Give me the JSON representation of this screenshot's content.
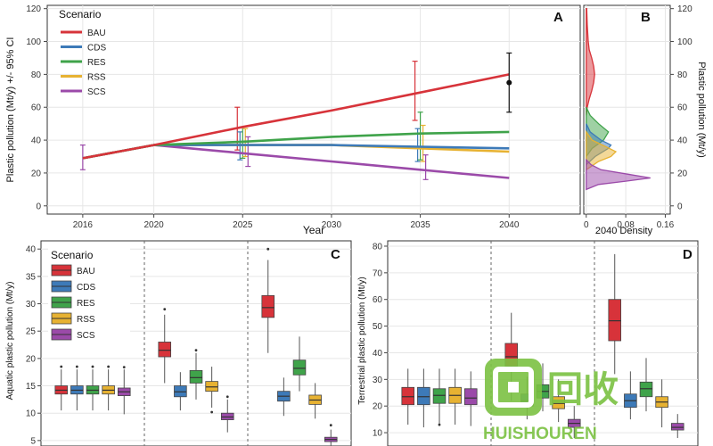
{
  "colors": {
    "BAU": "#d7333a",
    "CDS": "#3d7ab8",
    "RES": "#3fa34a",
    "RSS": "#e7b232",
    "SCS": "#9b4aa9",
    "watermark": "#7bc142"
  },
  "chart_data": [
    {
      "panel": "A",
      "type": "line",
      "xlabel": "Year",
      "ylabel": "Plastic pollution (Mt/y) +/- 95% CI",
      "xlim": [
        2014,
        2044
      ],
      "ylim": [
        -5,
        122
      ],
      "xticks": [
        2016,
        2020,
        2025,
        2030,
        2035,
        2040
      ],
      "yticks": [
        0,
        20,
        40,
        60,
        80,
        100,
        120
      ],
      "legend": {
        "title": "Scenario",
        "placement": "top-left"
      },
      "series": [
        {
          "name": "BAU",
          "x": [
            2016,
            2020,
            2025,
            2030,
            2035,
            2040
          ],
          "y": [
            29,
            37,
            48,
            58,
            69,
            80
          ]
        },
        {
          "name": "CDS",
          "x": [
            2016,
            2020,
            2025,
            2030,
            2035,
            2040
          ],
          "y": [
            29,
            37,
            37,
            37,
            36,
            35
          ]
        },
        {
          "name": "RES",
          "x": [
            2016,
            2020,
            2025,
            2030,
            2035,
            2040
          ],
          "y": [
            29,
            37,
            39,
            42,
            44,
            45
          ]
        },
        {
          "name": "RSS",
          "x": [
            2016,
            2020,
            2025,
            2030,
            2035,
            2040
          ],
          "y": [
            29,
            37,
            37,
            37,
            35,
            33
          ]
        },
        {
          "name": "SCS",
          "x": [
            2016,
            2020,
            2025,
            2030,
            2035,
            2040
          ],
          "y": [
            29,
            37,
            32,
            27,
            22,
            17
          ]
        }
      ],
      "error_bars": [
        {
          "series": "BAU",
          "x": 2025,
          "low": 34,
          "high": 60
        },
        {
          "series": "CDS",
          "x": 2025,
          "low": 28,
          "high": 45
        },
        {
          "series": "RES",
          "x": 2025,
          "low": 29,
          "high": 48
        },
        {
          "series": "RSS",
          "x": 2025,
          "low": 30,
          "high": 47
        },
        {
          "series": "SCS",
          "x": 2025,
          "low": 24,
          "high": 42
        },
        {
          "series": "BAU",
          "x": 2035,
          "low": 52,
          "high": 88
        },
        {
          "series": "CDS",
          "x": 2035,
          "low": 27,
          "high": 47
        },
        {
          "series": "RES",
          "x": 2035,
          "low": 28,
          "high": 57
        },
        {
          "series": "RSS",
          "x": 2035,
          "low": 27,
          "high": 49
        },
        {
          "series": "SCS",
          "x": 2035,
          "low": 16,
          "high": 31
        },
        {
          "series": "SCS",
          "x": 2016,
          "low": 22,
          "high": 37
        }
      ],
      "observed": {
        "x": 2040,
        "y": 75,
        "low": 57,
        "high": 93
      }
    },
    {
      "panel": "B",
      "type": "area",
      "xlabel": "2040 Density",
      "ylabel": "Plastic pollution (Mt/y)",
      "xlim": [
        -0.005,
        0.17
      ],
      "ylim": [
        -5,
        122
      ],
      "xticks": [
        0,
        0.08,
        0.16
      ],
      "xticklabels": [
        "0",
        "0.08",
        "0.16"
      ],
      "yticks": [
        0,
        20,
        40,
        60,
        80,
        100,
        120
      ],
      "series": [
        {
          "name": "BAU",
          "y": [
            55,
            60,
            65,
            70,
            75,
            80,
            85,
            90,
            95,
            100,
            110,
            120
          ],
          "d": [
            0,
            0.002,
            0.006,
            0.011,
            0.015,
            0.017,
            0.015,
            0.011,
            0.006,
            0.004,
            0.002,
            0.001
          ]
        },
        {
          "name": "RES",
          "y": [
            30,
            35,
            40,
            45,
            50,
            55,
            60
          ],
          "d": [
            0,
            0.012,
            0.035,
            0.045,
            0.025,
            0.008,
            0
          ]
        },
        {
          "name": "CDS",
          "y": [
            25,
            30,
            35,
            37,
            40,
            45,
            50
          ],
          "d": [
            0,
            0.018,
            0.045,
            0.05,
            0.03,
            0.008,
            0
          ]
        },
        {
          "name": "RSS",
          "y": [
            22,
            27,
            30,
            33,
            36,
            40,
            45
          ],
          "d": [
            0,
            0.025,
            0.05,
            0.06,
            0.04,
            0.012,
            0
          ]
        },
        {
          "name": "SCS",
          "y": [
            10,
            13,
            15,
            17,
            19,
            22,
            25,
            28
          ],
          "d": [
            0,
            0.025,
            0.08,
            0.13,
            0.09,
            0.03,
            0.01,
            0
          ]
        }
      ]
    },
    {
      "panel": "C",
      "type": "box",
      "ylabel": "Aquatic plastic pollution (Mt/y)",
      "ylim": [
        4,
        41.5
      ],
      "yticks": [
        5,
        10,
        15,
        20,
        25,
        30,
        35,
        40
      ],
      "legend": {
        "title": "Scenario",
        "placement": "top-left"
      },
      "groups": [
        {
          "boxes": [
            {
              "name": "BAU",
              "min": 10.5,
              "q1": 13.5,
              "median": 14.2,
              "q3": 15,
              "max": 18,
              "outliers": [
                18.5
              ]
            },
            {
              "name": "CDS",
              "min": 10.5,
              "q1": 13.5,
              "median": 14.2,
              "q3": 15,
              "max": 18,
              "outliers": [
                18.5
              ]
            },
            {
              "name": "RES",
              "min": 10.5,
              "q1": 13.5,
              "median": 14.2,
              "q3": 15,
              "max": 18,
              "outliers": [
                18.5
              ]
            },
            {
              "name": "RSS",
              "min": 10.5,
              "q1": 13.5,
              "median": 14.2,
              "q3": 15,
              "max": 18,
              "outliers": [
                18.5
              ]
            },
            {
              "name": "SCS",
              "min": 9.8,
              "q1": 13.2,
              "median": 13.9,
              "q3": 14.6,
              "max": 18,
              "outliers": [
                18.4
              ]
            }
          ]
        },
        {
          "boxes": [
            {
              "name": "BAU",
              "min": 15.5,
              "q1": 20.3,
              "median": 21.5,
              "q3": 23,
              "max": 28,
              "outliers": [
                29
              ]
            },
            {
              "name": "CDS",
              "min": 10.5,
              "q1": 13,
              "median": 13.9,
              "q3": 15,
              "max": 17.5,
              "outliers": []
            },
            {
              "name": "RES",
              "min": 12.5,
              "q1": 15.5,
              "median": 16.5,
              "q3": 17.8,
              "max": 21,
              "outliers": [
                21.5
              ]
            },
            {
              "name": "RSS",
              "min": 11,
              "q1": 14,
              "median": 14.8,
              "q3": 15.8,
              "max": 18.5,
              "outliers": [
                10.2
              ]
            },
            {
              "name": "SCS",
              "min": 6.5,
              "q1": 8.8,
              "median": 9.3,
              "q3": 10,
              "max": 12.5,
              "outliers": [
                13
              ]
            }
          ]
        },
        {
          "boxes": [
            {
              "name": "BAU",
              "min": 21,
              "q1": 27.5,
              "median": 29.3,
              "q3": 31.5,
              "max": 38,
              "outliers": [
                40
              ]
            },
            {
              "name": "CDS",
              "min": 9.5,
              "q1": 12.2,
              "median": 13.1,
              "q3": 14,
              "max": 16.5,
              "outliers": []
            },
            {
              "name": "RES",
              "min": 14,
              "q1": 17,
              "median": 18.2,
              "q3": 19.7,
              "max": 24,
              "outliers": []
            },
            {
              "name": "RSS",
              "min": 9,
              "q1": 11.6,
              "median": 12.4,
              "q3": 13.3,
              "max": 15.5,
              "outliers": []
            },
            {
              "name": "SCS",
              "min": 3.8,
              "q1": 4.8,
              "median": 5.2,
              "q3": 5.6,
              "max": 7,
              "outliers": [
                7.8
              ]
            }
          ]
        }
      ]
    },
    {
      "panel": "D",
      "type": "box",
      "ylabel": "Terrestrial plastic pollution (Mt/y)",
      "ylim": [
        5,
        82
      ],
      "yticks": [
        10,
        20,
        30,
        40,
        50,
        60,
        70,
        80
      ],
      "groups": [
        {
          "boxes": [
            {
              "name": "BAU",
              "min": 13,
              "q1": 20.5,
              "median": 23.5,
              "q3": 27,
              "max": 34,
              "outliers": []
            },
            {
              "name": "CDS",
              "min": 12,
              "q1": 20.5,
              "median": 23.5,
              "q3": 27,
              "max": 34,
              "outliers": []
            },
            {
              "name": "RES",
              "min": 12.5,
              "q1": 21,
              "median": 24,
              "q3": 26.5,
              "max": 34,
              "outliers": [
                13
              ]
            },
            {
              "name": "RSS",
              "min": 13,
              "q1": 21,
              "median": 24,
              "q3": 27,
              "max": 34,
              "outliers": []
            },
            {
              "name": "SCS",
              "min": 12.5,
              "q1": 20.5,
              "median": 23,
              "q3": 26.5,
              "max": 33,
              "outliers": []
            }
          ]
        },
        {
          "boxes": [
            {
              "name": "BAU",
              "min": 22,
              "q1": 35,
              "median": 38.5,
              "q3": 43.5,
              "max": 55,
              "outliers": []
            },
            {
              "name": "CDS",
              "min": 15,
              "q1": 20,
              "median": 22,
              "q3": 24.5,
              "max": 31,
              "outliers": []
            },
            {
              "name": "RES",
              "min": 18,
              "q1": 23,
              "median": 25.5,
              "q3": 28,
              "max": 36,
              "outliers": []
            },
            {
              "name": "RSS",
              "min": 14,
              "q1": 19,
              "median": 21,
              "q3": 23.5,
              "max": 30,
              "outliers": []
            },
            {
              "name": "SCS",
              "min": 8,
              "q1": 12,
              "median": 13.5,
              "q3": 15,
              "max": 20,
              "outliers": []
            }
          ]
        },
        {
          "boxes": [
            {
              "name": "BAU",
              "min": 32,
              "q1": 44.5,
              "median": 52,
              "q3": 60,
              "max": 77,
              "outliers": []
            },
            {
              "name": "CDS",
              "min": 15,
              "q1": 19.5,
              "median": 22,
              "q3": 24.5,
              "max": 33,
              "outliers": []
            },
            {
              "name": "RES",
              "min": 18,
              "q1": 23.5,
              "median": 26.5,
              "q3": 29,
              "max": 38,
              "outliers": []
            },
            {
              "name": "RSS",
              "min": 12,
              "q1": 19.5,
              "median": 21.5,
              "q3": 23.5,
              "max": 30,
              "outliers": []
            },
            {
              "name": "SCS",
              "min": 8,
              "q1": 11,
              "median": 12,
              "q3": 13.5,
              "max": 17,
              "outliers": []
            }
          ]
        }
      ]
    }
  ],
  "watermark": {
    "glyph": "回收",
    "text": "HUISHOUREN"
  }
}
